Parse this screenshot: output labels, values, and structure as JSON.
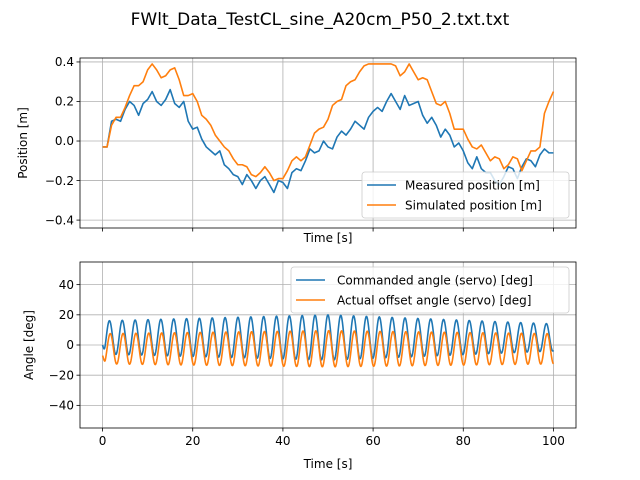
{
  "figure_title": "FWlt_Data_TestCL_sine_A20cm_P50_2.txt.txt",
  "chart_data": [
    {
      "type": "line",
      "title": "",
      "xlabel": "Time [s]",
      "ylabel": "Position [m]",
      "xlim": [
        -5,
        105
      ],
      "ylim": [
        -0.44,
        0.42
      ],
      "xticks": [
        0,
        20,
        40,
        60,
        80,
        100
      ],
      "show_xtick_labels": false,
      "yticks": [
        -0.4,
        -0.2,
        0.0,
        0.2,
        0.4
      ],
      "ytick_labels": [
        "−0.4",
        "−0.2",
        "0.0",
        "0.2",
        "0.4"
      ],
      "grid": true,
      "legend": "lower-right",
      "series": [
        {
          "name": "Measured position [m]",
          "color": "#1f77b4",
          "x": [
            0,
            1,
            2,
            3,
            4,
            5,
            6,
            7,
            8,
            9,
            10,
            11,
            12,
            13,
            14,
            15,
            16,
            17,
            18,
            19,
            20,
            21,
            22,
            23,
            24,
            25,
            26,
            27,
            28,
            29,
            30,
            31,
            32,
            33,
            34,
            35,
            36,
            37,
            38,
            39,
            40,
            41,
            42,
            43,
            44,
            45,
            46,
            47,
            48,
            49,
            50,
            51,
            52,
            53,
            54,
            55,
            56,
            57,
            58,
            59,
            60,
            61,
            62,
            63,
            64,
            65,
            66,
            67,
            68,
            69,
            70,
            71,
            72,
            73,
            74,
            75,
            76,
            77,
            78,
            79,
            80,
            81,
            82,
            83,
            84,
            85,
            86,
            87,
            88,
            89,
            90,
            91,
            92,
            93,
            94,
            95,
            96,
            97,
            98,
            99,
            100
          ],
          "y": [
            -0.03,
            -0.03,
            0.1,
            0.11,
            0.1,
            0.16,
            0.2,
            0.18,
            0.13,
            0.19,
            0.21,
            0.25,
            0.2,
            0.18,
            0.21,
            0.26,
            0.19,
            0.17,
            0.2,
            0.1,
            0.06,
            0.07,
            0.01,
            -0.03,
            -0.05,
            -0.07,
            -0.05,
            -0.12,
            -0.14,
            -0.17,
            -0.18,
            -0.22,
            -0.17,
            -0.2,
            -0.24,
            -0.2,
            -0.18,
            -0.22,
            -0.26,
            -0.2,
            -0.21,
            -0.24,
            -0.16,
            -0.14,
            -0.15,
            -0.1,
            -0.04,
            -0.06,
            -0.05,
            0.0,
            -0.03,
            -0.04,
            0.02,
            0.05,
            0.03,
            0.06,
            0.1,
            0.08,
            0.06,
            0.12,
            0.15,
            0.17,
            0.15,
            0.2,
            0.24,
            0.2,
            0.16,
            0.23,
            0.18,
            0.19,
            0.2,
            0.13,
            0.09,
            0.12,
            0.08,
            0.02,
            0.06,
            0.03,
            -0.03,
            -0.01,
            -0.05,
            -0.11,
            -0.14,
            -0.08,
            -0.14,
            -0.16,
            -0.16,
            -0.2,
            -0.22,
            -0.18,
            -0.13,
            -0.14,
            -0.19,
            -0.13,
            -0.09,
            -0.1,
            -0.13,
            -0.07,
            -0.04,
            -0.06,
            -0.06
          ]
        },
        {
          "name": "Simulated position [m]",
          "color": "#ff7f0e",
          "x": [
            0,
            1,
            2,
            3,
            4,
            5,
            6,
            7,
            8,
            9,
            10,
            11,
            12,
            13,
            14,
            15,
            16,
            17,
            18,
            19,
            20,
            21,
            22,
            23,
            24,
            25,
            26,
            27,
            28,
            29,
            30,
            31,
            32,
            33,
            34,
            35,
            36,
            37,
            38,
            39,
            40,
            41,
            42,
            43,
            44,
            45,
            46,
            47,
            48,
            49,
            50,
            51,
            52,
            53,
            54,
            55,
            56,
            57,
            58,
            59,
            60,
            61,
            62,
            63,
            64,
            65,
            66,
            67,
            68,
            69,
            70,
            71,
            72,
            73,
            74,
            75,
            76,
            77,
            78,
            79,
            80,
            81,
            82,
            83,
            84,
            85,
            86,
            87,
            88,
            89,
            90,
            91,
            92,
            93,
            94,
            95,
            96,
            97,
            98,
            99,
            100
          ],
          "y": [
            -0.03,
            -0.03,
            0.08,
            0.12,
            0.12,
            0.17,
            0.23,
            0.28,
            0.28,
            0.3,
            0.36,
            0.39,
            0.36,
            0.32,
            0.33,
            0.36,
            0.37,
            0.31,
            0.23,
            0.23,
            0.24,
            0.2,
            0.13,
            0.11,
            0.08,
            0.03,
            0.0,
            -0.03,
            -0.05,
            -0.09,
            -0.12,
            -0.12,
            -0.13,
            -0.17,
            -0.18,
            -0.16,
            -0.13,
            -0.16,
            -0.2,
            -0.19,
            -0.19,
            -0.15,
            -0.1,
            -0.08,
            -0.1,
            -0.08,
            -0.02,
            0.04,
            0.06,
            0.07,
            0.11,
            0.18,
            0.2,
            0.21,
            0.28,
            0.3,
            0.31,
            0.35,
            0.38,
            0.39,
            0.39,
            0.39,
            0.39,
            0.39,
            0.39,
            0.38,
            0.33,
            0.35,
            0.39,
            0.35,
            0.31,
            0.32,
            0.31,
            0.25,
            0.19,
            0.18,
            0.2,
            0.14,
            0.06,
            0.06,
            0.06,
            0.01,
            -0.03,
            -0.04,
            -0.02,
            -0.06,
            -0.1,
            -0.08,
            -0.09,
            -0.14,
            -0.12,
            -0.08,
            -0.09,
            -0.15,
            -0.1,
            -0.05,
            -0.05,
            -0.03,
            0.14,
            0.2,
            0.25
          ]
        }
      ]
    },
    {
      "type": "line",
      "title": "",
      "xlabel": "Time [s]",
      "ylabel": "Angle [deg]",
      "xlim": [
        -5,
        105
      ],
      "ylim": [
        -55,
        55
      ],
      "xticks": [
        0,
        20,
        40,
        60,
        80,
        100
      ],
      "xtick_labels": [
        "0",
        "20",
        "40",
        "60",
        "80",
        "100"
      ],
      "show_xtick_labels": true,
      "yticks": [
        -40,
        -20,
        0,
        20,
        40
      ],
      "ytick_labels": [
        "−40",
        "−20",
        "0",
        "20",
        "40"
      ],
      "grid": true,
      "legend": "top-right",
      "series": [
        {
          "name": "Commanded angle (servo) [deg]",
          "color": "#1f77b4",
          "wave": {
            "x_start": 0,
            "x_end": 100,
            "period": 2.85,
            "amplitude_start": 11,
            "amplitude_mid": 15,
            "amplitude_end": 9,
            "offset": 5,
            "phase": -1.8,
            "initial_value": 0
          }
        },
        {
          "name": "Actual offset angle (servo) [deg]",
          "color": "#ff7f0e",
          "wave": {
            "x_start": 0,
            "x_end": 100,
            "period": 2.85,
            "amplitude_start": 10,
            "amplitude_mid": 12,
            "amplitude_end": 10,
            "offset": -2.5,
            "phase": -2.2,
            "initial_value": -7
          }
        }
      ]
    }
  ]
}
